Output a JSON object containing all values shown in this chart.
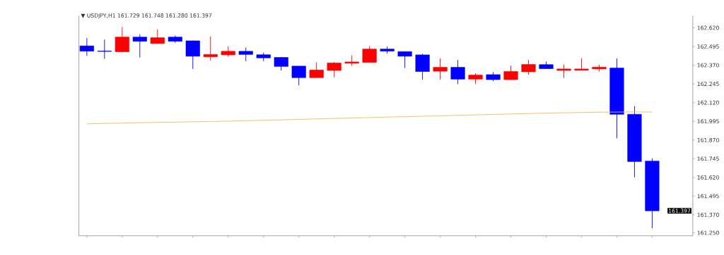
{
  "chart_data": {
    "type": "candlestick",
    "title": "▼ USDJPY,H1  161.729 161.748 161.280 161.397",
    "categories": [
      null,
      null,
      null,
      null,
      null,
      null,
      null,
      null,
      null,
      null,
      null,
      null,
      null,
      null,
      null,
      null,
      null,
      null,
      null,
      null,
      null,
      null,
      null,
      null,
      null,
      null,
      null,
      null,
      null,
      null,
      null,
      null,
      null
    ],
    "ohlc": [
      [
        162.499,
        162.551,
        162.432,
        162.464
      ],
      [
        162.465,
        162.541,
        162.413,
        162.462
      ],
      [
        162.46,
        162.625,
        162.457,
        162.558
      ],
      [
        162.558,
        162.577,
        162.422,
        162.53
      ],
      [
        162.515,
        162.609,
        162.513,
        162.554
      ],
      [
        162.558,
        162.569,
        162.52,
        162.53
      ],
      [
        162.533,
        162.535,
        162.345,
        162.43
      ],
      [
        162.426,
        162.562,
        162.401,
        162.442
      ],
      [
        162.439,
        162.496,
        162.426,
        162.463
      ],
      [
        162.463,
        162.488,
        162.397,
        162.442
      ],
      [
        162.44,
        162.454,
        162.397,
        162.419
      ],
      [
        162.422,
        162.425,
        162.335,
        162.362
      ],
      [
        162.364,
        162.365,
        162.236,
        162.287
      ],
      [
        162.287,
        162.389,
        162.285,
        162.338
      ],
      [
        162.335,
        162.391,
        162.29,
        162.385
      ],
      [
        162.383,
        162.436,
        162.368,
        162.392
      ],
      [
        162.389,
        162.498,
        162.388,
        162.478
      ],
      [
        162.478,
        162.495,
        162.447,
        162.464
      ],
      [
        162.461,
        162.462,
        162.351,
        162.43
      ],
      [
        162.439,
        162.446,
        162.274,
        162.328
      ],
      [
        162.33,
        162.415,
        162.274,
        162.356
      ],
      [
        162.356,
        162.405,
        162.244,
        162.277
      ],
      [
        162.277,
        162.316,
        162.244,
        162.304
      ],
      [
        162.307,
        162.324,
        162.263,
        162.274
      ],
      [
        162.274,
        162.368,
        162.272,
        162.328
      ],
      [
        162.326,
        162.405,
        162.307,
        162.375
      ],
      [
        162.374,
        162.394,
        162.346,
        162.347
      ],
      [
        162.335,
        162.375,
        162.286,
        162.345
      ],
      [
        162.336,
        162.415,
        162.335,
        162.345
      ],
      [
        162.345,
        162.373,
        162.328,
        162.357
      ],
      [
        162.351,
        162.415,
        161.881,
        162.042
      ],
      [
        162.042,
        162.096,
        161.621,
        161.726
      ],
      [
        161.729,
        161.748,
        161.28,
        161.397
      ]
    ],
    "colors": [
      "#0000ff",
      "#0000ff",
      "#ff0000",
      "#0000ff",
      "#ff0000",
      "#0000ff",
      "#0000ff",
      "#ff0000",
      "#ff0000",
      "#0000ff",
      "#0000ff",
      "#0000ff",
      "#0000ff",
      "#ff0000",
      "#ff0000",
      "#ff0000",
      "#ff0000",
      "#0000ff",
      "#0000ff",
      "#0000ff",
      "#ff0000",
      "#0000ff",
      "#ff0000",
      "#0000ff",
      "#ff0000",
      "#ff0000",
      "#0000ff",
      "#ff0000",
      "#ff0000",
      "#ff0000",
      "#0000ff",
      "#0000ff",
      "#0000ff"
    ],
    "series": [
      {
        "type": "line",
        "color": "#f0b956",
        "values": [
          161.978,
          161.981,
          161.983,
          161.986,
          161.988,
          161.99,
          161.992,
          161.994,
          161.996,
          161.999,
          162.002,
          162.005,
          162.008,
          162.011,
          162.014,
          162.017,
          162.02,
          162.023,
          162.026,
          162.029,
          162.032,
          162.035,
          162.038,
          162.041,
          162.044,
          162.047,
          162.05,
          162.052,
          162.054,
          162.056,
          162.057,
          162.058,
          162.057
        ]
      }
    ],
    "ylim": [
      161.23,
      162.7
    ],
    "yticks": [
      {
        "value": 162.62,
        "label": "162.620"
      },
      {
        "value": 162.495,
        "label": "162.495"
      },
      {
        "value": 162.37,
        "label": "162.370"
      },
      {
        "value": 162.245,
        "label": "162.245"
      },
      {
        "value": 162.12,
        "label": "162.120"
      },
      {
        "value": 161.995,
        "label": "161.995"
      },
      {
        "value": 161.87,
        "label": "161.870"
      },
      {
        "value": 161.745,
        "label": "161.745"
      },
      {
        "value": 161.62,
        "label": "161.620"
      },
      {
        "value": 161.495,
        "label": "161.495"
      },
      {
        "value": 161.37,
        "label": "161.370"
      },
      {
        "value": 161.25,
        "label": "161.250"
      }
    ],
    "tick_labels": "y",
    "annotations": [
      "161.397"
    ]
  }
}
